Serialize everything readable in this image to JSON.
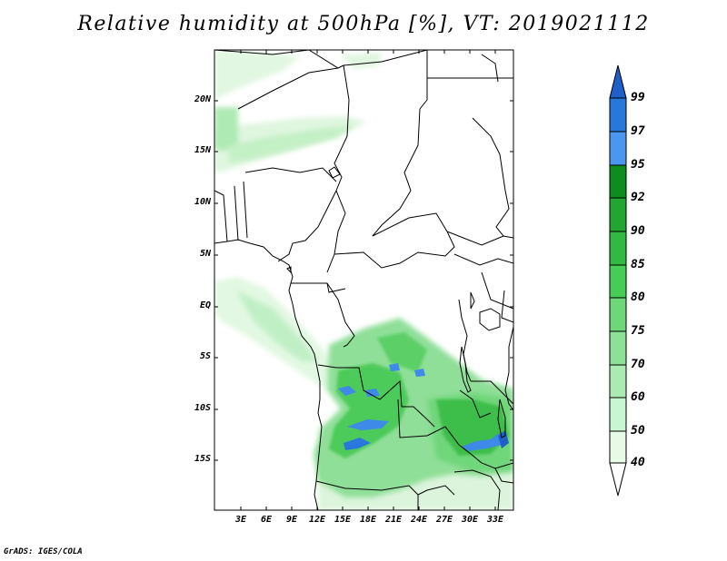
{
  "title": "Relative humidity at 500hPa [%], VT: 2019021112",
  "lat_labels": [
    "20N",
    "15N",
    "10N",
    "5N",
    "EQ",
    "5S",
    "10S",
    "15S"
  ],
  "lon_labels": [
    "3E",
    "6E",
    "9E",
    "12E",
    "15E",
    "18E",
    "21E",
    "24E",
    "27E",
    "30E",
    "33E"
  ],
  "colorbar": {
    "levels": [
      "99",
      "97",
      "95",
      "92",
      "90",
      "85",
      "80",
      "75",
      "70",
      "60",
      "50",
      "40"
    ],
    "colors": {
      "above_99": "#1e60c8",
      "97_99": "#2878dc",
      "95_97": "#4b96ee",
      "92_95": "#0f8c1e",
      "90_92": "#23a532",
      "85_90": "#32b941",
      "80_85": "#46cd55",
      "75_80": "#6ed778",
      "70_75": "#8ce196",
      "60_70": "#aaebb4",
      "50_60": "#c8f5d2",
      "40_50": "#e6fae6",
      "below_40": "#ffffff"
    }
  },
  "credit": "GrADS: IGES/COLA"
}
